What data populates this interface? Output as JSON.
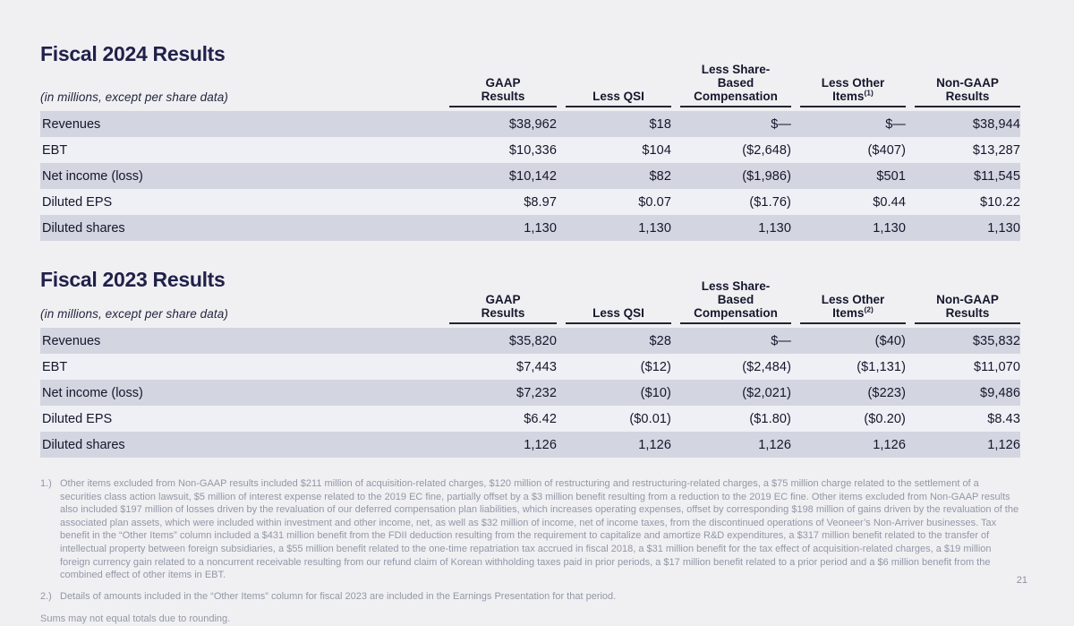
{
  "page_number": "21",
  "colors": {
    "background": "#f0f0f3",
    "row_dark": "#d3d5e1",
    "row_light": "#eef0f5",
    "ink_navy": "#20214a",
    "footnote_gray": "#9397a6"
  },
  "tables": [
    {
      "title": "Fiscal 2024 Results",
      "note": "(in millions, except per share data)",
      "columns": [
        {
          "lines": "GAAP\nResults"
        },
        {
          "lines": "Less QSI"
        },
        {
          "lines": "Less Share-\nBased\nCompensation"
        },
        {
          "line1": "Less Other",
          "base": "Items",
          "sup": "(1)"
        },
        {
          "lines": "Non-GAAP\nResults"
        }
      ],
      "rows": [
        {
          "label": "Revenues",
          "cells": [
            "$38,962",
            "$18",
            "$—",
            "$—",
            "$38,944"
          ]
        },
        {
          "label": "EBT",
          "cells": [
            "$10,336",
            "$104",
            "($2,648)",
            "($407)",
            "$13,287"
          ]
        },
        {
          "label": "Net income (loss)",
          "cells": [
            "$10,142",
            "$82",
            "($1,986)",
            "$501",
            "$11,545"
          ]
        },
        {
          "label": "Diluted EPS",
          "cells": [
            "$8.97",
            "$0.07",
            "($1.76)",
            "$0.44",
            "$10.22"
          ]
        },
        {
          "label": "Diluted shares",
          "cells": [
            "1,130",
            "1,130",
            "1,130",
            "1,130",
            "1,130"
          ]
        }
      ]
    },
    {
      "title": "Fiscal 2023 Results",
      "note": "(in millions, except per share data)",
      "columns": [
        {
          "lines": "GAAP\nResults"
        },
        {
          "lines": "Less QSI"
        },
        {
          "lines": "Less Share-\nBased\nCompensation"
        },
        {
          "line1": "Less Other",
          "base": "Items",
          "sup": "(2)"
        },
        {
          "lines": "Non-GAAP\nResults"
        }
      ],
      "rows": [
        {
          "label": "Revenues",
          "cells": [
            "$35,820",
            "$28",
            "$—",
            "($40)",
            "$35,832"
          ]
        },
        {
          "label": "EBT",
          "cells": [
            "$7,443",
            "($12)",
            "($2,484)",
            "($1,131)",
            "$11,070"
          ]
        },
        {
          "label": "Net income (loss)",
          "cells": [
            "$7,232",
            "($10)",
            "($2,021)",
            "($223)",
            "$9,486"
          ]
        },
        {
          "label": "Diluted EPS",
          "cells": [
            "$6.42",
            "($0.01)",
            "($1.80)",
            "($0.20)",
            "$8.43"
          ]
        },
        {
          "label": "Diluted shares",
          "cells": [
            "1,126",
            "1,126",
            "1,126",
            "1,126",
            "1,126"
          ]
        }
      ]
    }
  ],
  "footnotes": [
    {
      "marker": "1.)",
      "text": "Other items excluded from Non-GAAP results included $211 million of acquisition-related charges, $120 million of restructuring and restructuring-related charges, a $75 million charge related to the settlement of a securities class action lawsuit, $5 million of interest expense related to the 2019 EC fine, partially offset by a $3 million benefit resulting from a reduction to the 2019 EC fine. Other items excluded from Non-GAAP results also included $197 million of losses driven by the revaluation of our deferred compensation plan liabilities, which increases operating expenses, offset by corresponding $198 million of gains driven by the revaluation of the associated plan assets, which were included within investment and other income, net, as well as $32 million of income, net of income taxes, from the discontinued operations of Veoneer’s Non-Arriver businesses. Tax benefit in the “Other Items” column included a $431 million benefit from the FDII deduction resulting from the requirement to capitalize and amortize R&D expenditures, a $317 million benefit related to the transfer of intellectual property between foreign subsidiaries, a $55 million benefit related to the one-time repatriation tax accrued in fiscal 2018, a $31 million benefit for the tax effect of acquisition-related charges, a $19 million foreign currency gain related to a noncurrent receivable resulting from our refund claim of Korean withholding taxes paid in prior periods, a $17 million benefit related to a prior period and a $6 million benefit from the combined effect of other items in EBT."
    },
    {
      "marker": "2.)",
      "text": "Details of amounts included in the “Other Items” column for fiscal 2023 are included in the Earnings Presentation for that period."
    }
  ],
  "rounding_note": "Sums may not equal totals due to rounding."
}
